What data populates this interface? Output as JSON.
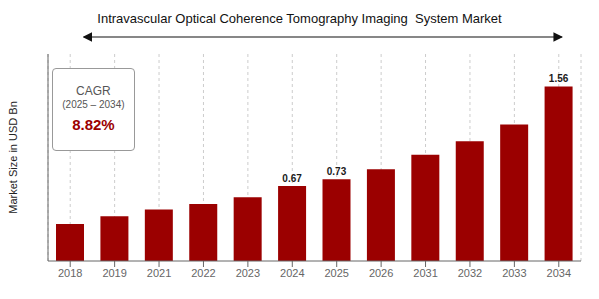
{
  "chart_data": {
    "type": "bar",
    "title": "Intravascular Optical Coherence Tomography Imaging  System Market",
    "ylabel": "Market Size in USD Bn",
    "categories": [
      "2018",
      "2019",
      "2021",
      "2022",
      "2023",
      "2024",
      "2025",
      "2026",
      "2031",
      "2032",
      "2033",
      "2034"
    ],
    "values": [
      0.33,
      0.4,
      0.46,
      0.51,
      0.57,
      0.67,
      0.73,
      0.82,
      0.95,
      1.07,
      1.22,
      1.56
    ],
    "value_labels": [
      null,
      null,
      null,
      null,
      null,
      "0.67",
      "0.73",
      null,
      null,
      null,
      null,
      "1.56"
    ],
    "color": "#9B0000",
    "ylim": [
      0,
      1.85
    ],
    "yticks": [],
    "tick_labels": "x",
    "grid": true,
    "annotations": [
      "CAGR",
      "(2025 – 2034)",
      "8.82%"
    ]
  }
}
